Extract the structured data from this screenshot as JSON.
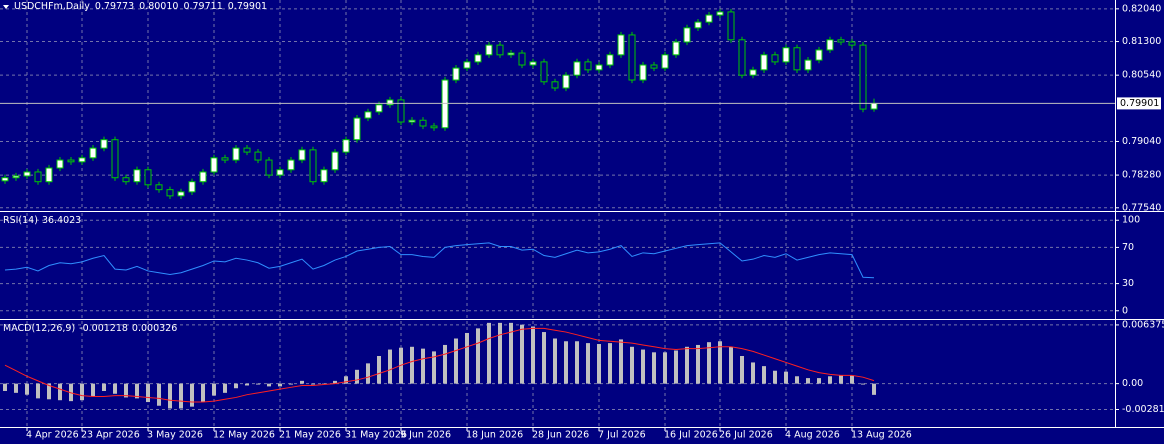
{
  "chart_data": [
    {
      "type": "candlestick",
      "title": "USDCHFm,Daily",
      "last_value_labels": [
        "0.79773",
        "0.80010",
        "0.79711",
        "0.79901"
      ],
      "bull_color": "#ffffff",
      "bear_color": "#000080",
      "wick_color": "#00c800",
      "categories": [
        null,
        null,
        "4 Apr 2026",
        null,
        null,
        null,
        null,
        "23 Apr 2026",
        null,
        null,
        null,
        null,
        null,
        "3 May 2026",
        null,
        null,
        null,
        null,
        null,
        "12 May 2026",
        null,
        null,
        null,
        null,
        null,
        "21 May 2026",
        null,
        null,
        null,
        null,
        null,
        "31 May 2026",
        null,
        null,
        null,
        null,
        "9 Jun 2026",
        null,
        null,
        null,
        null,
        null,
        "18 Jun 2026",
        null,
        null,
        null,
        null,
        null,
        "28 Jun 2026",
        null,
        null,
        null,
        null,
        null,
        "7 Jul 2026",
        null,
        null,
        null,
        null,
        null,
        "16 Jul 2026",
        null,
        null,
        null,
        null,
        "26 Jul 2026",
        null,
        null,
        null,
        null,
        null,
        "4 Aug 2026",
        null,
        null,
        null,
        null,
        null,
        "13 Aug 2026",
        null,
        null
      ],
      "candles": [
        [
          0.7815,
          0.7829,
          0.7808,
          0.7822
        ],
        [
          0.7822,
          0.7833,
          0.7815,
          0.7826
        ],
        [
          0.7826,
          0.7842,
          0.7819,
          0.7835
        ],
        [
          0.7835,
          0.7842,
          0.7806,
          0.7813
        ],
        [
          0.7813,
          0.7851,
          0.7806,
          0.7844
        ],
        [
          0.7844,
          0.7869,
          0.7837,
          0.7862
        ],
        [
          0.7862,
          0.7869,
          0.7851,
          0.7858
        ],
        [
          0.7858,
          0.7874,
          0.7851,
          0.7867
        ],
        [
          0.7867,
          0.7896,
          0.786,
          0.7889
        ],
        [
          0.7889,
          0.7915,
          0.7882,
          0.7908
        ],
        [
          0.7908,
          0.7915,
          0.7815,
          0.7822
        ],
        [
          0.7822,
          0.7829,
          0.7806,
          0.7813
        ],
        [
          0.7813,
          0.7847,
          0.7806,
          0.784
        ],
        [
          0.784,
          0.7847,
          0.7799,
          0.7806
        ],
        [
          0.7806,
          0.7813,
          0.7788,
          0.7795
        ],
        [
          0.7795,
          0.7802,
          0.7774,
          0.7781
        ],
        [
          0.7781,
          0.7797,
          0.7774,
          0.779
        ],
        [
          0.779,
          0.782,
          0.7783,
          0.7813
        ],
        [
          0.7813,
          0.7842,
          0.7806,
          0.7835
        ],
        [
          0.7835,
          0.7874,
          0.7828,
          0.7867
        ],
        [
          0.7867,
          0.7874,
          0.7855,
          0.7862
        ],
        [
          0.7862,
          0.7896,
          0.7855,
          0.7889
        ],
        [
          0.7889,
          0.7896,
          0.7873,
          0.788
        ],
        [
          0.788,
          0.7887,
          0.7855,
          0.7862
        ],
        [
          0.7862,
          0.7869,
          0.7821,
          0.7828
        ],
        [
          0.7828,
          0.7847,
          0.7821,
          0.784
        ],
        [
          0.784,
          0.7869,
          0.7833,
          0.7862
        ],
        [
          0.7862,
          0.7892,
          0.7855,
          0.7885
        ],
        [
          0.7885,
          0.7892,
          0.7806,
          0.7813
        ],
        [
          0.7813,
          0.7847,
          0.7806,
          0.784
        ],
        [
          0.784,
          0.7887,
          0.7833,
          0.788
        ],
        [
          0.788,
          0.7915,
          0.7873,
          0.7908
        ],
        [
          0.7908,
          0.7964,
          0.7901,
          0.7957
        ],
        [
          0.7957,
          0.7978,
          0.795,
          0.7971
        ],
        [
          0.7971,
          0.7994,
          0.7964,
          0.7987
        ],
        [
          0.7987,
          0.8005,
          0.798,
          0.7998
        ],
        [
          0.7998,
          0.8005,
          0.7941,
          0.7948
        ],
        [
          0.7948,
          0.7959,
          0.7941,
          0.7952
        ],
        [
          0.7952,
          0.7959,
          0.7932,
          0.7939
        ],
        [
          0.7939,
          0.7946,
          0.7928,
          0.7935
        ],
        [
          0.7935,
          0.805,
          0.7928,
          0.8043
        ],
        [
          0.8043,
          0.8077,
          0.8036,
          0.807
        ],
        [
          0.807,
          0.8091,
          0.8063,
          0.8084
        ],
        [
          0.8084,
          0.8107,
          0.8077,
          0.81
        ],
        [
          0.81,
          0.8129,
          0.8093,
          0.8122
        ],
        [
          0.8122,
          0.8129,
          0.8093,
          0.81
        ],
        [
          0.81,
          0.8111,
          0.8093,
          0.8104
        ],
        [
          0.8104,
          0.8111,
          0.807,
          0.8077
        ],
        [
          0.8077,
          0.8091,
          0.807,
          0.8084
        ],
        [
          0.8084,
          0.8091,
          0.8032,
          0.8039
        ],
        [
          0.8039,
          0.8046,
          0.8018,
          0.8025
        ],
        [
          0.8025,
          0.8061,
          0.8018,
          0.8054
        ],
        [
          0.8054,
          0.8091,
          0.8047,
          0.8084
        ],
        [
          0.8084,
          0.8091,
          0.8059,
          0.8066
        ],
        [
          0.8066,
          0.8084,
          0.8059,
          0.8077
        ],
        [
          0.8077,
          0.8107,
          0.807,
          0.81
        ],
        [
          0.81,
          0.8152,
          0.8093,
          0.8145
        ],
        [
          0.8145,
          0.8152,
          0.8036,
          0.8043
        ],
        [
          0.8043,
          0.8084,
          0.8036,
          0.8077
        ],
        [
          0.8077,
          0.8084,
          0.8063,
          0.807
        ],
        [
          0.807,
          0.8107,
          0.8063,
          0.81
        ],
        [
          0.81,
          0.8136,
          0.8093,
          0.8129
        ],
        [
          0.8129,
          0.8168,
          0.8122,
          0.8161
        ],
        [
          0.8161,
          0.8181,
          0.8154,
          0.8174
        ],
        [
          0.8174,
          0.8197,
          0.8167,
          0.819
        ],
        [
          0.819,
          0.8204,
          0.8183,
          0.8197
        ],
        [
          0.8197,
          0.8204,
          0.8127,
          0.8134
        ],
        [
          0.8134,
          0.8141,
          0.8047,
          0.8054
        ],
        [
          0.8054,
          0.8073,
          0.8047,
          0.8066
        ],
        [
          0.8066,
          0.8107,
          0.8059,
          0.81
        ],
        [
          0.81,
          0.8107,
          0.8077,
          0.8084
        ],
        [
          0.8084,
          0.8123,
          0.8077,
          0.8116
        ],
        [
          0.8116,
          0.8123,
          0.8059,
          0.8066
        ],
        [
          0.8066,
          0.8095,
          0.8059,
          0.8088
        ],
        [
          0.8088,
          0.8118,
          0.8081,
          0.8111
        ],
        [
          0.8111,
          0.8141,
          0.8104,
          0.8134
        ],
        [
          0.8134,
          0.8141,
          0.8122,
          0.8129
        ],
        [
          0.8129,
          0.8136,
          0.8115,
          0.8122
        ],
        [
          0.8122,
          0.8129,
          0.797,
          0.79773
        ],
        [
          0.79773,
          0.8001,
          0.79711,
          0.79901
        ]
      ],
      "ylim": [
        0.7749,
        0.8224
      ],
      "yticks": [
        {
          "value": 0.8204,
          "label": "0.82040"
        },
        {
          "value": 0.813,
          "label": "0.81300"
        },
        {
          "value": 0.8054,
          "label": "0.80540"
        },
        {
          "value": 0.7904,
          "label": "0.79040"
        },
        {
          "value": 0.7828,
          "label": "0.78280"
        },
        {
          "value": 0.7754,
          "label": "0.77540"
        }
      ],
      "grid": true
    },
    {
      "type": "line",
      "title": "RSI(14)",
      "color": "#2f8fff",
      "values": [
        45,
        46,
        48,
        44,
        50,
        53,
        52,
        54,
        58,
        61,
        46,
        45,
        49,
        44,
        42,
        40,
        42,
        46,
        50,
        55,
        54,
        58,
        56,
        53,
        47,
        49,
        53,
        57,
        46,
        50,
        56,
        60,
        66,
        68,
        70,
        71,
        62,
        62,
        60,
        59,
        70,
        72,
        73,
        74,
        75,
        71,
        71,
        67,
        68,
        61,
        59,
        63,
        67,
        64,
        65,
        68,
        72,
        60,
        64,
        63,
        66,
        69,
        72,
        73,
        74,
        75,
        65,
        55,
        57,
        61,
        59,
        63,
        56,
        59,
        62,
        64,
        63,
        62,
        37,
        36.4023
      ],
      "ylim": [
        -8,
        108
      ],
      "yticks": [
        100,
        70,
        30,
        0
      ],
      "grid": true
    },
    {
      "type": "macd",
      "title": "MACD(12,26,9)",
      "color": "#c0c0c0",
      "signal_color": "#ff2020",
      "values": [
        -0.0008,
        -0.001,
        -0.0012,
        -0.0016,
        -0.0017,
        -0.0018,
        -0.0019,
        -0.0018,
        -0.0014,
        -0.0008,
        -0.0011,
        -0.0015,
        -0.0016,
        -0.002,
        -0.0024,
        -0.0027,
        -0.0027,
        -0.0025,
        -0.002,
        -0.0013,
        -0.001,
        -0.0005,
        -0.0002,
        -0.0001,
        -0.0003,
        -0.0003,
        -0.0001,
        0.0003,
        -0.0001,
        0,
        0.0003,
        0.0008,
        0.0015,
        0.0022,
        0.003,
        0.0037,
        0.0039,
        0.004,
        0.0038,
        0.0035,
        0.0042,
        0.0049,
        0.0055,
        0.006,
        0.0066,
        0.0066,
        0.0066,
        0.0064,
        0.0062,
        0.0056,
        0.0049,
        0.0046,
        0.0046,
        0.0044,
        0.0043,
        0.0044,
        0.0048,
        0.004,
        0.0037,
        0.0034,
        0.0034,
        0.0036,
        0.004,
        0.0042,
        0.0045,
        0.0046,
        0.004,
        0.003,
        0.0023,
        0.0019,
        0.0014,
        0.0013,
        0.0008,
        0.0006,
        0.0006,
        0.0008,
        0.0009,
        0.0009,
        -0.0001,
        -0.001218
      ],
      "signal": [
        0.002,
        0.0014,
        0.0008,
        0.0003,
        -0.0002,
        -0.0006,
        -0.001,
        -0.0013,
        -0.0014,
        -0.0014,
        -0.0013,
        -0.0013,
        -0.0014,
        -0.0015,
        -0.0016,
        -0.0018,
        -0.0019,
        -0.002,
        -0.002,
        -0.0019,
        -0.0017,
        -0.0015,
        -0.0012,
        -0.001,
        -0.0008,
        -0.0006,
        -0.0004,
        -0.0002,
        -0.0002,
        -0.0001,
        0,
        0.0002,
        0.0004,
        0.0007,
        0.0011,
        0.0015,
        0.002,
        0.0024,
        0.0027,
        0.0029,
        0.0032,
        0.0036,
        0.004,
        0.0044,
        0.0049,
        0.0053,
        0.0056,
        0.0059,
        0.006,
        0.006,
        0.0058,
        0.0056,
        0.0053,
        0.005,
        0.0047,
        0.0046,
        0.0045,
        0.0044,
        0.0042,
        0.004,
        0.0038,
        0.0037,
        0.0038,
        0.0038,
        0.0039,
        0.004,
        0.004,
        0.0038,
        0.0035,
        0.0031,
        0.0027,
        0.0023,
        0.0019,
        0.0015,
        0.0012,
        0.001,
        0.0009,
        0.0009,
        0.0007,
        0.000326
      ],
      "ylim": [
        -0.0046,
        0.0068
      ],
      "yticks": [
        0.006375,
        {
          "value": 0,
          "label": "0.00"
        },
        -0.00281
      ],
      "grid": true
    }
  ]
}
